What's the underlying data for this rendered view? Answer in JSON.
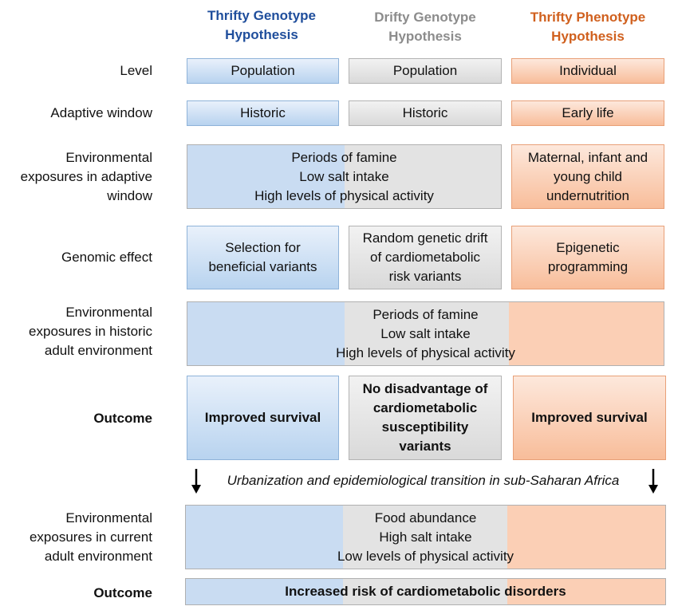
{
  "columns": {
    "thrifty_genotype": "Thrifty Genotype\nHypothesis",
    "drifty_genotype": "Drifty Genotype\nHypothesis",
    "thrifty_phenotype": "Thrifty Phenotype\nHypothesis"
  },
  "colors": {
    "thrifty_genotype": "#1f4e9c",
    "drifty_genotype": "#8c8c8c",
    "thrifty_phenotype": "#d0601e"
  },
  "rows": {
    "level": {
      "label": "Level",
      "thrifty_genotype": "Population",
      "drifty_genotype": "Population",
      "thrifty_phenotype": "Individual"
    },
    "adaptive_window": {
      "label": "Adaptive window",
      "thrifty_genotype": "Historic",
      "drifty_genotype": "Historic",
      "thrifty_phenotype": "Early life"
    },
    "env_adaptive": {
      "label": "Environmental\nexposures in adaptive\nwindow",
      "shared_genotype": "Periods of famine\nLow salt intake\nHigh levels of physical activity",
      "thrifty_phenotype": "Maternal, infant and\nyoung child\nundernutrition"
    },
    "genomic_effect": {
      "label": "Genomic effect",
      "thrifty_genotype": "Selection for\nbeneficial variants",
      "drifty_genotype": "Random genetic drift\nof cardiometabolic\nrisk variants",
      "thrifty_phenotype": "Epigenetic\nprogramming"
    },
    "env_historic": {
      "label": "Environmental\nexposures in historic\nadult environment",
      "shared": "Periods of famine\nLow salt intake\nHigh levels of physical activity"
    },
    "outcome_1": {
      "label": "Outcome",
      "thrifty_genotype": "Improved survival",
      "drifty_genotype": "No disadvantage of\ncardiometabolic\nsusceptibility\nvariants",
      "thrifty_phenotype": "Improved survival"
    },
    "transition": {
      "text": "Urbanization and epidemiological transition in sub-Saharan Africa"
    },
    "env_current": {
      "label": "Environmental\nexposures in current\nadult environment",
      "shared": "Food abundance\nHigh salt intake\nLow levels of physical activity"
    },
    "outcome_2": {
      "label": "Outcome",
      "shared": "Increased risk of cardiometabolic disorders"
    }
  }
}
